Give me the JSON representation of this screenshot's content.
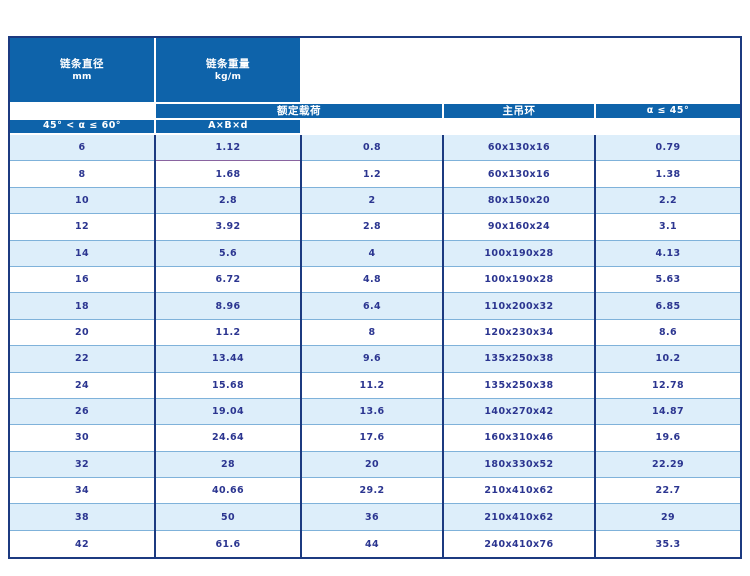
{
  "colors": {
    "header_bg": "#0e63aa",
    "border_navy": "#1c3a80",
    "row_alt_bg": "#ddeefa",
    "row_bg": "#ffffff",
    "row_divider": "#7fb2da",
    "cell_text": "#2b3590",
    "header_text": "#ffffff",
    "accent_underline": "#8a64a0"
  },
  "table": {
    "header": {
      "diameter_title": "链条直径",
      "diameter_unit": "mm",
      "rated_load_label": "额定载荷",
      "angle_le_45": "α ≤ 45°",
      "angle_45_60": "45° < α ≤ 60°",
      "main_ring_label": "主吊环",
      "ring_dims": "A×B×d",
      "weight_title": "链条重量",
      "weight_unit": "kg/m"
    },
    "rows": [
      [
        "6",
        "1.12",
        "0.8",
        "60x130x16",
        "0.79"
      ],
      [
        "8",
        "1.68",
        "1.2",
        "60x130x16",
        "1.38"
      ],
      [
        "10",
        "2.8",
        "2",
        "80x150x20",
        "2.2"
      ],
      [
        "12",
        "3.92",
        "2.8",
        "90x160x24",
        "3.1"
      ],
      [
        "14",
        "5.6",
        "4",
        "100x190x28",
        "4.13"
      ],
      [
        "16",
        "6.72",
        "4.8",
        "100x190x28",
        "5.63"
      ],
      [
        "18",
        "8.96",
        "6.4",
        "110x200x32",
        "6.85"
      ],
      [
        "20",
        "11.2",
        "8",
        "120x230x34",
        "8.6"
      ],
      [
        "22",
        "13.44",
        "9.6",
        "135x250x38",
        "10.2"
      ],
      [
        "24",
        "15.68",
        "11.2",
        "135x250x38",
        "12.78"
      ],
      [
        "26",
        "19.04",
        "13.6",
        "140x270x42",
        "14.87"
      ],
      [
        "30",
        "24.64",
        "17.6",
        "160x310x46",
        "19.6"
      ],
      [
        "32",
        "28",
        "20",
        "180x330x52",
        "22.29"
      ],
      [
        "34",
        "40.66",
        "29.2",
        "210x410x62",
        "22.7"
      ],
      [
        "38",
        "50",
        "36",
        "210x410x62",
        "29"
      ],
      [
        "42",
        "61.6",
        "44",
        "240x410x76",
        "35.3"
      ]
    ]
  },
  "chart_data": {
    "type": "table",
    "columns": [
      "链条直径 mm",
      "额定载荷 α ≤ 45°",
      "额定载荷 45° < α ≤ 60°",
      "主吊环 A×B×d",
      "链条重量 kg/m"
    ],
    "rows": [
      [
        6,
        1.12,
        0.8,
        "60x130x16",
        0.79
      ],
      [
        8,
        1.68,
        1.2,
        "60x130x16",
        1.38
      ],
      [
        10,
        2.8,
        2,
        "80x150x20",
        2.2
      ],
      [
        12,
        3.92,
        2.8,
        "90x160x24",
        3.1
      ],
      [
        14,
        5.6,
        4,
        "100x190x28",
        4.13
      ],
      [
        16,
        6.72,
        4.8,
        "100x190x28",
        5.63
      ],
      [
        18,
        8.96,
        6.4,
        "110x200x32",
        6.85
      ],
      [
        20,
        11.2,
        8,
        "120x230x34",
        8.6
      ],
      [
        22,
        13.44,
        9.6,
        "135x250x38",
        10.2
      ],
      [
        24,
        15.68,
        11.2,
        "135x250x38",
        12.78
      ],
      [
        26,
        19.04,
        13.6,
        "140x270x42",
        14.87
      ],
      [
        30,
        24.64,
        17.6,
        "160x310x46",
        19.6
      ],
      [
        32,
        28,
        20,
        "180x330x52",
        22.29
      ],
      [
        34,
        40.66,
        29.2,
        "210x410x62",
        22.7
      ],
      [
        38,
        50,
        36,
        "210x410x62",
        29
      ],
      [
        42,
        61.6,
        44,
        "240x410x76",
        35.3
      ]
    ]
  }
}
